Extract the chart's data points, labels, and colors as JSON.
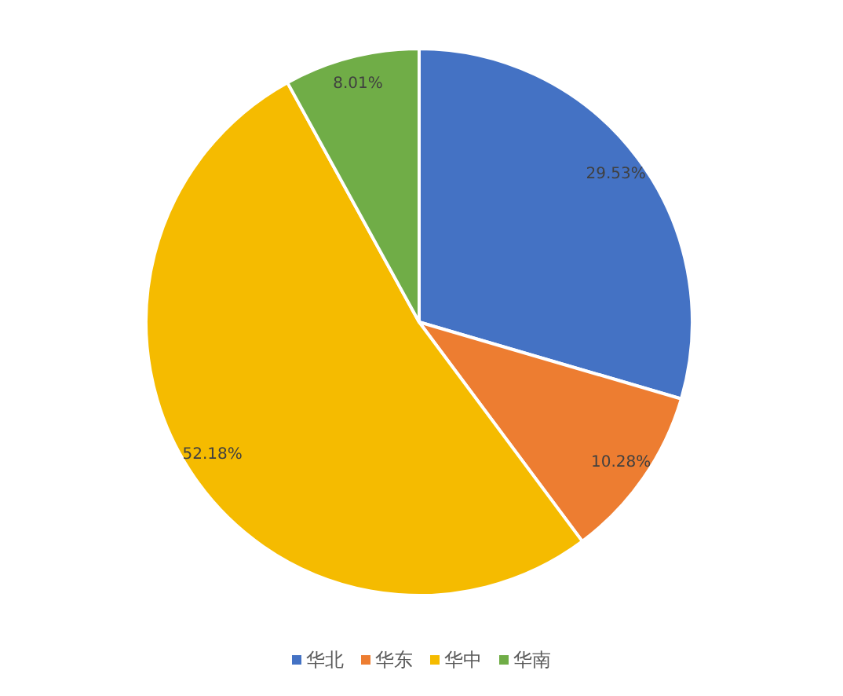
{
  "chart_data": {
    "type": "pie",
    "categories": [
      "华北",
      "华东",
      "华中",
      "华南"
    ],
    "values": [
      29.53,
      10.28,
      52.18,
      8.01
    ],
    "colors": [
      "#4472c4",
      "#ed7d31",
      "#f5bb00",
      "#70ad47"
    ],
    "value_labels": [
      "29.53%",
      "10.28%",
      "52.18%",
      "8.01%"
    ],
    "legend": "bottom"
  }
}
